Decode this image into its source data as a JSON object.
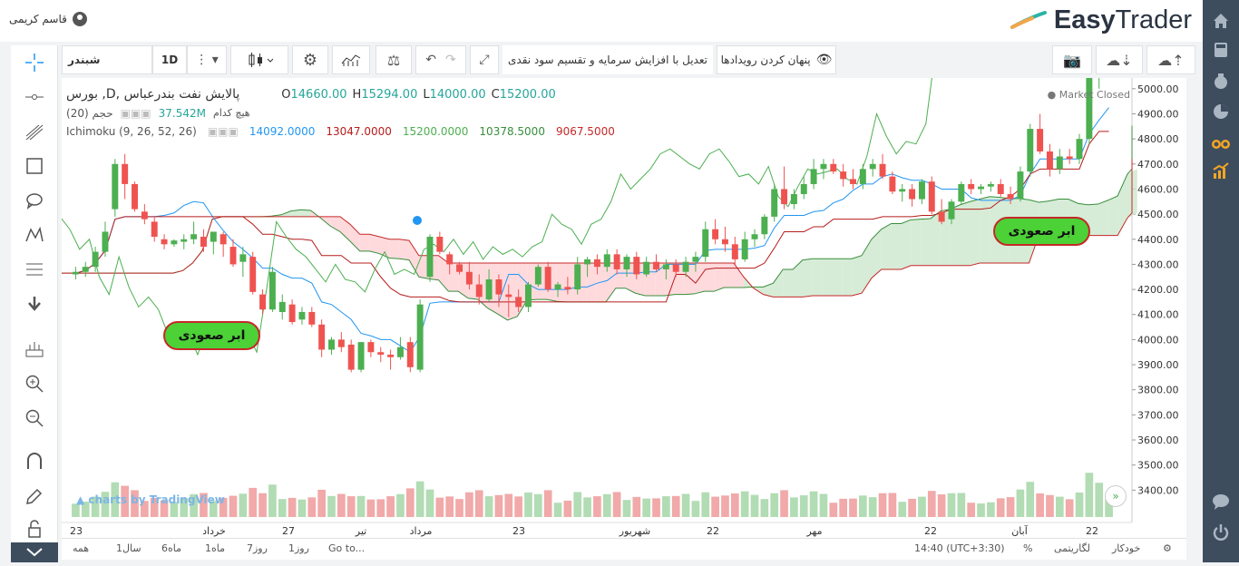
{
  "header": {
    "user_name": "قاسم کریمی",
    "logo_easy": "Easy",
    "logo_trader": "Trader"
  },
  "toolbar": {
    "symbol": "شبندر",
    "interval": "1D",
    "adjust_label": "تعدیل با افزایش سرمایه و تقسیم سود نقدی",
    "hide_events_label": "پنهان کردن رویدادها"
  },
  "legend": {
    "title": "بورس ,D, پالایش نفت بندرعباس",
    "ohlc": {
      "o_label": "O",
      "o": "14660.00",
      "h_label": "H",
      "h": "15294.00",
      "l_label": "L",
      "l": "14000.00",
      "c_label": "C",
      "c": "15200.00"
    },
    "market_status": "Market Closed",
    "volume_label": "(حجم (20",
    "volume_value": "37.542M",
    "volume_extra": "هیچ کدام",
    "ichimoku_label": "Ichimoku (9, 26, 52, 26)",
    "ichimoku_values": [
      "14092.0000",
      "13047.0000",
      "15200.0000",
      "10378.5000",
      "9067.5000"
    ]
  },
  "annotations": {
    "bubble_left": "ابر صعودی",
    "bubble_right": "ابر صعودی",
    "watermark": "charts by TradingView"
  },
  "price_axis": [
    "5000.00",
    "4900.00",
    "4800.00",
    "4700.00",
    "4600.00",
    "4500.00",
    "4400.00",
    "4300.00",
    "4200.00",
    "4100.00",
    "4000.00",
    "3900.00",
    "3800.00",
    "3700.00",
    "3600.00",
    "3500.00",
    "3400.00"
  ],
  "time_axis": [
    "23",
    "خرداد",
    "27",
    "تیر",
    "مرداد",
    "23",
    "شهریور",
    "22",
    "مهر",
    "22",
    "آبان",
    "22"
  ],
  "bottom": {
    "ranges": [
      "همه",
      "1سال",
      "6ماه",
      "1ماه",
      "7روز",
      "1روز",
      "Go to..."
    ],
    "time": "14:40 (UTC+3:30)",
    "percent": "%",
    "log": "لگاریتمی",
    "auto": "خودکار"
  },
  "colors": {
    "up": "#26a69a",
    "up_candle": "#4caf50",
    "down": "#ef5350",
    "tenkan": "#2196f3",
    "kijun": "#b71c1c",
    "chikou": "#4caf50",
    "cloud_up": "#c8e6c9",
    "cloud_down": "#ffcdd2",
    "sidebar": "#3d4d5e"
  },
  "chart_data": {
    "type": "candlestick",
    "ylim": [
      3300,
      5050
    ],
    "ohlc": [
      [
        4260,
        4290,
        4240,
        4270
      ],
      [
        4270,
        4310,
        4250,
        4290
      ],
      [
        4290,
        4370,
        4270,
        4350
      ],
      [
        4350,
        4470,
        4330,
        4430
      ],
      [
        4520,
        4720,
        4490,
        4700
      ],
      [
        4700,
        4740,
        4560,
        4620
      ],
      [
        4620,
        4630,
        4510,
        4520
      ],
      [
        4510,
        4540,
        4460,
        4480
      ],
      [
        4470,
        4490,
        4390,
        4410
      ],
      [
        4400,
        4420,
        4360,
        4380
      ],
      [
        4380,
        4400,
        4370,
        4395
      ],
      [
        4390,
        4420,
        4360,
        4400
      ],
      [
        4400,
        4470,
        4380,
        4420
      ],
      [
        4410,
        4440,
        4350,
        4370
      ],
      [
        4390,
        4420,
        4340,
        4430
      ],
      [
        4420,
        4430,
        4330,
        4380
      ],
      [
        4370,
        4400,
        4290,
        4300
      ],
      [
        4310,
        4370,
        4250,
        4340
      ],
      [
        4330,
        4350,
        4180,
        4190
      ],
      [
        4180,
        4200,
        4100,
        4120
      ],
      [
        4120,
        4290,
        4110,
        4270
      ],
      [
        4110,
        4180,
        4080,
        4150
      ],
      [
        4140,
        4160,
        4060,
        4070
      ],
      [
        4080,
        4130,
        4060,
        4110
      ],
      [
        4110,
        4130,
        4050,
        4060
      ],
      [
        4060,
        4080,
        3930,
        3960
      ],
      [
        3960,
        4010,
        3940,
        4000
      ],
      [
        4000,
        4030,
        3950,
        3970
      ],
      [
        3980,
        4000,
        3870,
        3880
      ],
      [
        3880,
        3990,
        3870,
        3990
      ],
      [
        3990,
        4000,
        3930,
        3950
      ],
      [
        3950,
        3970,
        3910,
        3940
      ],
      [
        3940,
        3960,
        3880,
        3930
      ],
      [
        3930,
        4010,
        3920,
        3970
      ],
      [
        3990,
        4010,
        3870,
        3890
      ],
      [
        3880,
        4160,
        3870,
        4140
      ],
      [
        4250,
        4420,
        4230,
        4410
      ],
      [
        4410,
        4430,
        4340,
        4350
      ],
      [
        4340,
        4350,
        4260,
        4300
      ],
      [
        4300,
        4310,
        4260,
        4270
      ],
      [
        4270,
        4310,
        4200,
        4220
      ],
      [
        4220,
        4260,
        4140,
        4170
      ],
      [
        4160,
        4280,
        4150,
        4240
      ],
      [
        4240,
        4260,
        4130,
        4180
      ],
      [
        4180,
        4220,
        4090,
        4170
      ],
      [
        4170,
        4200,
        4110,
        4130
      ],
      [
        4130,
        4230,
        4110,
        4220
      ],
      [
        4220,
        4300,
        4210,
        4290
      ],
      [
        4290,
        4310,
        4190,
        4200
      ],
      [
        4200,
        4230,
        4170,
        4220
      ],
      [
        4210,
        4250,
        4180,
        4200
      ],
      [
        4200,
        4330,
        4180,
        4300
      ],
      [
        4300,
        4330,
        4250,
        4320
      ],
      [
        4320,
        4340,
        4260,
        4290
      ],
      [
        4290,
        4360,
        4270,
        4340
      ],
      [
        4340,
        4360,
        4260,
        4280
      ],
      [
        4280,
        4340,
        4250,
        4330
      ],
      [
        4330,
        4350,
        4240,
        4260
      ],
      [
        4260,
        4330,
        4250,
        4310
      ],
      [
        4310,
        4340,
        4270,
        4280
      ],
      [
        4280,
        4320,
        4240,
        4300
      ],
      [
        4300,
        4320,
        4250,
        4270
      ],
      [
        4270,
        4330,
        4250,
        4310
      ],
      [
        4310,
        4350,
        4270,
        4330
      ],
      [
        4330,
        4470,
        4310,
        4440
      ],
      [
        4440,
        4480,
        4380,
        4400
      ],
      [
        4400,
        4450,
        4350,
        4380
      ],
      [
        4380,
        4410,
        4300,
        4320
      ],
      [
        4320,
        4430,
        4310,
        4400
      ],
      [
        4400,
        4440,
        4370,
        4420
      ],
      [
        4420,
        4500,
        4400,
        4490
      ],
      [
        4490,
        4620,
        4470,
        4600
      ],
      [
        4600,
        4690,
        4520,
        4540
      ],
      [
        4540,
        4600,
        4520,
        4580
      ],
      [
        4580,
        4650,
        4560,
        4620
      ],
      [
        4620,
        4720,
        4600,
        4680
      ],
      [
        4680,
        4720,
        4640,
        4700
      ],
      [
        4700,
        4720,
        4660,
        4670
      ],
      [
        4670,
        4700,
        4610,
        4640
      ],
      [
        4640,
        4680,
        4600,
        4620
      ],
      [
        4620,
        4700,
        4600,
        4680
      ],
      [
        4680,
        4720,
        4650,
        4700
      ],
      [
        4700,
        4740,
        4640,
        4650
      ],
      [
        4650,
        4670,
        4580,
        4590
      ],
      [
        4590,
        4620,
        4550,
        4600
      ],
      [
        4600,
        4620,
        4530,
        4560
      ],
      [
        4560,
        4640,
        4540,
        4630
      ],
      [
        4630,
        4650,
        4500,
        4510
      ],
      [
        4510,
        4560,
        4460,
        4470
      ],
      [
        4480,
        4560,
        4460,
        4550
      ],
      [
        4550,
        4630,
        4540,
        4620
      ],
      [
        4620,
        4640,
        4580,
        4600
      ],
      [
        4600,
        4620,
        4580,
        4610
      ],
      [
        4610,
        4630,
        4590,
        4620
      ],
      [
        4620,
        4640,
        4570,
        4580
      ],
      [
        4580,
        4610,
        4540,
        4560
      ],
      [
        4560,
        4690,
        4550,
        4670
      ],
      [
        4670,
        4860,
        4650,
        4840
      ],
      [
        4840,
        4900,
        4740,
        4750
      ],
      [
        4750,
        4780,
        4650,
        4680
      ],
      [
        4680,
        4760,
        4660,
        4730
      ],
      [
        4730,
        4760,
        4700,
        4720
      ],
      [
        4720,
        4820,
        4700,
        4800
      ],
      [
        4800,
        5100,
        4780,
        5100
      ],
      [
        5100,
        5200,
        5000,
        5150
      ],
      [
        5150,
        5200,
        5080,
        5180
      ]
    ],
    "volume_max": 3750
  }
}
